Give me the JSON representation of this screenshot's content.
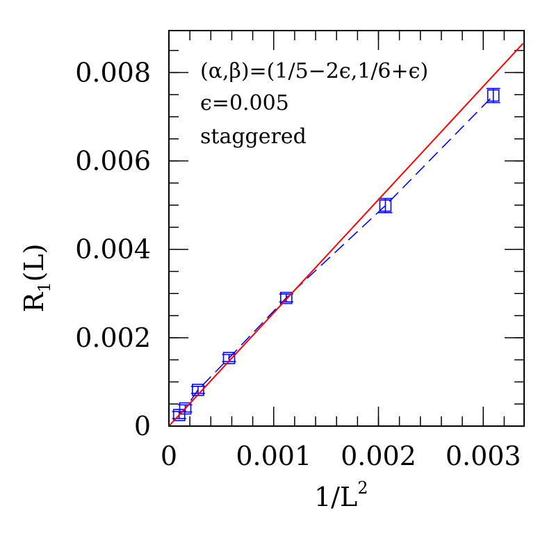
{
  "chart_data": {
    "type": "scatter",
    "xlabel_main": "1/L",
    "xlabel_sup": "2",
    "ylabel_main": "R",
    "ylabel_sub": "1",
    "ylabel_tail": "(L)",
    "xlim": [
      0,
      0.00339
    ],
    "ylim": [
      0,
      0.00895
    ],
    "x_ticks": [
      {
        "value": 0,
        "label": "0"
      },
      {
        "value": 0.001,
        "label": "0.001"
      },
      {
        "value": 0.002,
        "label": "0.002"
      },
      {
        "value": 0.003,
        "label": "0.003"
      }
    ],
    "y_ticks": [
      {
        "value": 0,
        "label": "0"
      },
      {
        "value": 0.002,
        "label": "0.002"
      },
      {
        "value": 0.004,
        "label": "0.004"
      },
      {
        "value": 0.006,
        "label": "0.006"
      },
      {
        "value": 0.008,
        "label": "0.008"
      }
    ],
    "x_minor_step": 0.0002,
    "y_minor_step": 0.0005,
    "annotations": [
      "(α,β)=(1/5−2ϵ,1/6+ϵ)",
      "ϵ=0.005",
      "staggered"
    ],
    "series": [
      {
        "style": "markers-errorbars-dashed",
        "color": "#0000ff",
        "points": [
          {
            "x": 9.77e-05,
            "y": 0.00025,
            "err": 8e-05
          },
          {
            "x": 0.000156,
            "y": 0.0004,
            "err": 8e-05
          },
          {
            "x": 0.000278,
            "y": 0.00082,
            "err": 8e-05
          },
          {
            "x": 0.000574,
            "y": 0.00154,
            "err": 8e-05
          },
          {
            "x": 0.00112,
            "y": 0.0029,
            "err": 9e-05
          },
          {
            "x": 0.002066,
            "y": 0.00499,
            "err": 0.00016
          },
          {
            "x": 0.003096,
            "y": 0.00748,
            "err": 0.00016
          }
        ]
      },
      {
        "style": "line",
        "color": "#ff0000",
        "x": [
          0,
          0.00338
        ],
        "y": [
          0.0,
          0.00866
        ]
      }
    ]
  }
}
